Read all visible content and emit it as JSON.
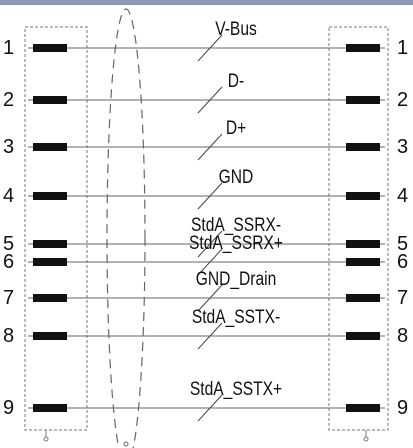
{
  "diagram": {
    "accent_top_bar": "#8a98b8",
    "wire_color": "#666666",
    "pin_block_color": "#111111",
    "connector_outline_color": "#777777",
    "shield_color": "#666666",
    "pins": [
      {
        "left": "1",
        "right": "1",
        "signal": "V-Bus"
      },
      {
        "left": "2",
        "right": "2",
        "signal": "D-"
      },
      {
        "left": "3",
        "right": "3",
        "signal": "D+"
      },
      {
        "left": "4",
        "right": "4",
        "signal": "GND"
      },
      {
        "left": "5",
        "right": "5",
        "signal": "StdA_SSRX-"
      },
      {
        "left": "6",
        "right": "6",
        "signal": "StdA_SSRX+"
      },
      {
        "left": "7",
        "right": "7",
        "signal": "GND_Drain"
      },
      {
        "left": "8",
        "right": "8",
        "signal": "StdA_SSTX-"
      },
      {
        "left": "9",
        "right": "9",
        "signal": "StdA_SSTX+"
      }
    ]
  }
}
